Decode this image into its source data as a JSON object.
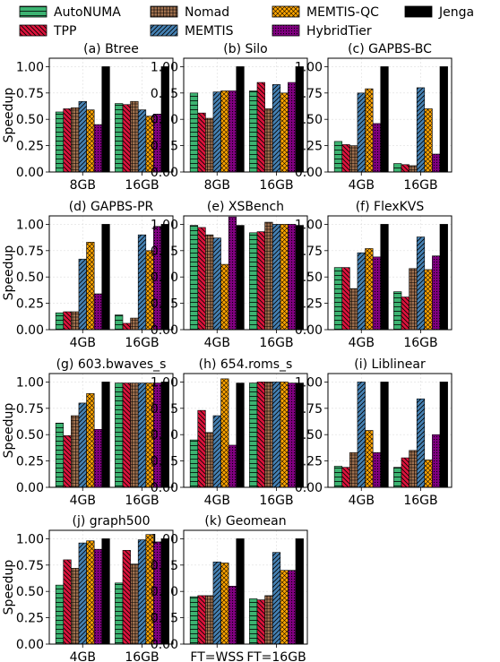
{
  "legend": {
    "items": [
      {
        "name": "AutoNUMA",
        "color": "#3cb371",
        "hatch": "hline"
      },
      {
        "name": "Nomad",
        "color": "#a0714f",
        "hatch": "grid"
      },
      {
        "name": "MEMTIS-QC",
        "color": "#ffa500",
        "hatch": "cross"
      },
      {
        "name": "Jenga",
        "color": "#000000",
        "hatch": "none"
      },
      {
        "name": "TPP",
        "color": "#dc143c",
        "hatch": "back"
      },
      {
        "name": "MEMTIS",
        "color": "#4682b4",
        "hatch": "fwd"
      },
      {
        "name": "HybridTier",
        "color": "#800080",
        "hatch": "dots"
      }
    ]
  },
  "ylabel": "Speedup",
  "yticks": [
    "0.00",
    "0.25",
    "0.50",
    "0.75",
    "1.00"
  ],
  "chart_data": [
    {
      "type": "bar",
      "title": "(a) Btree",
      "categories": [
        "8GB",
        "16GB"
      ],
      "ylim": [
        0,
        1.08
      ],
      "series": [
        {
          "name": "AutoNUMA",
          "values": [
            0.57,
            0.65
          ]
        },
        {
          "name": "TPP",
          "values": [
            0.6,
            0.64
          ]
        },
        {
          "name": "Nomad",
          "values": [
            0.61,
            0.67
          ]
        },
        {
          "name": "MEMTIS",
          "values": [
            0.67,
            0.59
          ]
        },
        {
          "name": "MEMTIS-QC",
          "values": [
            0.59,
            0.53
          ]
        },
        {
          "name": "HybridTier",
          "values": [
            0.45,
            0.55
          ]
        },
        {
          "name": "Jenga",
          "values": [
            1.0,
            1.0
          ]
        }
      ]
    },
    {
      "type": "bar",
      "title": "(b) Silo",
      "categories": [
        "8GB",
        "16GB"
      ],
      "ylim": [
        0,
        1.08
      ],
      "series": [
        {
          "name": "AutoNUMA",
          "values": [
            0.75,
            0.77
          ]
        },
        {
          "name": "TPP",
          "values": [
            0.56,
            0.85
          ]
        },
        {
          "name": "Nomad",
          "values": [
            0.51,
            0.6
          ]
        },
        {
          "name": "MEMTIS",
          "values": [
            0.76,
            0.83
          ]
        },
        {
          "name": "MEMTIS-QC",
          "values": [
            0.77,
            0.75
          ]
        },
        {
          "name": "HybridTier",
          "values": [
            0.77,
            0.85
          ]
        },
        {
          "name": "Jenga",
          "values": [
            1.0,
            1.0
          ]
        }
      ]
    },
    {
      "type": "bar",
      "title": "(c) GAPBS-BC",
      "categories": [
        "4GB",
        "16GB"
      ],
      "ylim": [
        0,
        1.08
      ],
      "series": [
        {
          "name": "AutoNUMA",
          "values": [
            0.29,
            0.08
          ]
        },
        {
          "name": "TPP",
          "values": [
            0.26,
            0.07
          ]
        },
        {
          "name": "Nomad",
          "values": [
            0.25,
            0.06
          ]
        },
        {
          "name": "MEMTIS",
          "values": [
            0.75,
            0.8
          ]
        },
        {
          "name": "MEMTIS-QC",
          "values": [
            0.79,
            0.6
          ]
        },
        {
          "name": "HybridTier",
          "values": [
            0.46,
            0.17
          ]
        },
        {
          "name": "Jenga",
          "values": [
            1.0,
            1.0
          ]
        }
      ]
    },
    {
      "type": "bar",
      "title": "(d) GAPBS-PR",
      "categories": [
        "4GB",
        "16GB"
      ],
      "ylim": [
        0,
        1.08
      ],
      "series": [
        {
          "name": "AutoNUMA",
          "values": [
            0.16,
            0.14
          ]
        },
        {
          "name": "TPP",
          "values": [
            0.17,
            0.06
          ]
        },
        {
          "name": "Nomad",
          "values": [
            0.17,
            0.11
          ]
        },
        {
          "name": "MEMTIS",
          "values": [
            0.67,
            0.9
          ]
        },
        {
          "name": "MEMTIS-QC",
          "values": [
            0.83,
            0.75
          ]
        },
        {
          "name": "HybridTier",
          "values": [
            0.34,
            0.98
          ]
        },
        {
          "name": "Jenga",
          "values": [
            1.0,
            1.0
          ]
        }
      ]
    },
    {
      "type": "bar",
      "title": "(e) XSBench",
      "categories": [
        "4GB",
        "16GB"
      ],
      "ylim": [
        0,
        1.08
      ],
      "series": [
        {
          "name": "AutoNUMA",
          "values": [
            0.99,
            0.92
          ]
        },
        {
          "name": "TPP",
          "values": [
            0.97,
            0.93
          ]
        },
        {
          "name": "Nomad",
          "values": [
            0.9,
            1.02
          ]
        },
        {
          "name": "MEMTIS",
          "values": [
            0.87,
            1.0
          ]
        },
        {
          "name": "MEMTIS-QC",
          "values": [
            0.62,
            1.0
          ]
        },
        {
          "name": "HybridTier",
          "values": [
            1.07,
            1.0
          ]
        },
        {
          "name": "Jenga",
          "values": [
            0.99,
            0.99
          ]
        }
      ]
    },
    {
      "type": "bar",
      "title": "(f) FlexKVS",
      "categories": [
        "4GB",
        "16GB"
      ],
      "ylim": [
        0,
        1.08
      ],
      "series": [
        {
          "name": "AutoNUMA",
          "values": [
            0.59,
            0.36
          ]
        },
        {
          "name": "TPP",
          "values": [
            0.59,
            0.31
          ]
        },
        {
          "name": "Nomad",
          "values": [
            0.39,
            0.58
          ]
        },
        {
          "name": "MEMTIS",
          "values": [
            0.73,
            0.88
          ]
        },
        {
          "name": "MEMTIS-QC",
          "values": [
            0.77,
            0.57
          ]
        },
        {
          "name": "HybridTier",
          "values": [
            0.69,
            0.7
          ]
        },
        {
          "name": "Jenga",
          "values": [
            1.0,
            1.0
          ]
        }
      ]
    },
    {
      "type": "bar",
      "title": "(g) 603.bwaves_s",
      "categories": [
        "4GB",
        "16GB"
      ],
      "ylim": [
        0,
        1.08
      ],
      "series": [
        {
          "name": "AutoNUMA",
          "values": [
            0.61,
            0.99
          ]
        },
        {
          "name": "TPP",
          "values": [
            0.49,
            0.99
          ]
        },
        {
          "name": "Nomad",
          "values": [
            0.68,
            0.99
          ]
        },
        {
          "name": "MEMTIS",
          "values": [
            0.8,
            0.99
          ]
        },
        {
          "name": "MEMTIS-QC",
          "values": [
            0.89,
            0.99
          ]
        },
        {
          "name": "HybridTier",
          "values": [
            0.55,
            0.99
          ]
        },
        {
          "name": "Jenga",
          "values": [
            1.0,
            1.0
          ]
        }
      ]
    },
    {
      "type": "bar",
      "title": "(h) 654.roms_s",
      "categories": [
        "4GB",
        "16GB"
      ],
      "ylim": [
        0,
        1.08
      ],
      "series": [
        {
          "name": "AutoNUMA",
          "values": [
            0.45,
            0.99
          ]
        },
        {
          "name": "TPP",
          "values": [
            0.73,
            1.0
          ]
        },
        {
          "name": "Nomad",
          "values": [
            0.52,
            1.0
          ]
        },
        {
          "name": "MEMTIS",
          "values": [
            0.68,
            1.0
          ]
        },
        {
          "name": "MEMTIS-QC",
          "values": [
            1.03,
            1.0
          ]
        },
        {
          "name": "HybridTier",
          "values": [
            0.4,
            0.99
          ]
        },
        {
          "name": "Jenga",
          "values": [
            0.99,
            0.99
          ]
        }
      ]
    },
    {
      "type": "bar",
      "title": "(i) Liblinear",
      "categories": [
        "4GB",
        "16GB"
      ],
      "ylim": [
        0,
        1.08
      ],
      "series": [
        {
          "name": "AutoNUMA",
          "values": [
            0.2,
            0.19
          ]
        },
        {
          "name": "TPP",
          "values": [
            0.19,
            0.28
          ]
        },
        {
          "name": "Nomad",
          "values": [
            0.33,
            0.35
          ]
        },
        {
          "name": "MEMTIS",
          "values": [
            1.0,
            0.84
          ]
        },
        {
          "name": "MEMTIS-QC",
          "values": [
            0.54,
            0.26
          ]
        },
        {
          "name": "HybridTier",
          "values": [
            0.33,
            0.5
          ]
        },
        {
          "name": "Jenga",
          "values": [
            1.0,
            1.0
          ]
        }
      ]
    },
    {
      "type": "bar",
      "title": "(j) graph500",
      "categories": [
        "4GB",
        "16GB"
      ],
      "ylim": [
        0,
        1.08
      ],
      "series": [
        {
          "name": "AutoNUMA",
          "values": [
            0.56,
            0.58
          ]
        },
        {
          "name": "TPP",
          "values": [
            0.8,
            0.89
          ]
        },
        {
          "name": "Nomad",
          "values": [
            0.72,
            0.76
          ]
        },
        {
          "name": "MEMTIS",
          "values": [
            0.96,
            0.99
          ]
        },
        {
          "name": "MEMTIS-QC",
          "values": [
            0.98,
            1.04
          ]
        },
        {
          "name": "HybridTier",
          "values": [
            0.9,
            0.97
          ]
        },
        {
          "name": "Jenga",
          "values": [
            1.0,
            1.0
          ]
        }
      ]
    },
    {
      "type": "bar",
      "title": "(k) Geomean",
      "categories": [
        "FT=WSS",
        "FT=16GB"
      ],
      "ylim": [
        0,
        1.08
      ],
      "series": [
        {
          "name": "AutoNUMA",
          "values": [
            0.45,
            0.43
          ]
        },
        {
          "name": "TPP",
          "values": [
            0.46,
            0.42
          ]
        },
        {
          "name": "Nomad",
          "values": [
            0.46,
            0.46
          ]
        },
        {
          "name": "MEMTIS",
          "values": [
            0.78,
            0.87
          ]
        },
        {
          "name": "MEMTIS-QC",
          "values": [
            0.77,
            0.7
          ]
        },
        {
          "name": "HybridTier",
          "values": [
            0.55,
            0.7
          ]
        },
        {
          "name": "Jenga",
          "values": [
            1.0,
            1.0
          ]
        }
      ]
    }
  ]
}
